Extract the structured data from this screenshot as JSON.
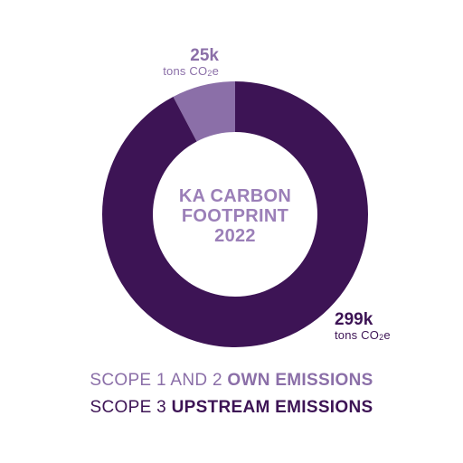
{
  "chart_data": {
    "type": "pie",
    "donut": true,
    "title_lines": [
      "KA CARBON",
      "FOOTPRINT",
      "2022"
    ],
    "unit_prefix": "tons CO",
    "unit_sub": "2",
    "unit_suffix": "e",
    "slices": [
      {
        "name_plain": "SCOPE 1 AND 2 ",
        "name_bold": "OWN EMISSIONS",
        "value": 25,
        "label": "25k",
        "color": "#8b6fa8"
      },
      {
        "name_plain": "SCOPE 3 ",
        "name_bold": "UPSTREAM EMISSIONS",
        "value": 299,
        "label": "299k",
        "color": "#3d1455"
      }
    ]
  }
}
